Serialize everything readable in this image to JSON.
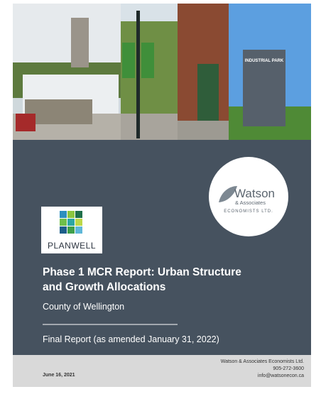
{
  "photo": {
    "sign": "INDUSTRIAL PARK"
  },
  "logo_watson": {
    "name": "Watson",
    "sub": "& Associates",
    "tag": "ECONOMISTS LTD."
  },
  "logo_planwell": {
    "name": "PLANWELL"
  },
  "report": {
    "title": [
      "Phase 1 MCR Report:  Urban Structure",
      "and Growth Allocations"
    ],
    "client": "County of Wellington",
    "status": "Final Report (as amended January 31, 2022)"
  },
  "footer": {
    "date": "June 16, 2021",
    "contact": [
      "Watson & Associates Economists Ltd.",
      "905-272-3600",
      "info@watsonecon.ca"
    ]
  }
}
